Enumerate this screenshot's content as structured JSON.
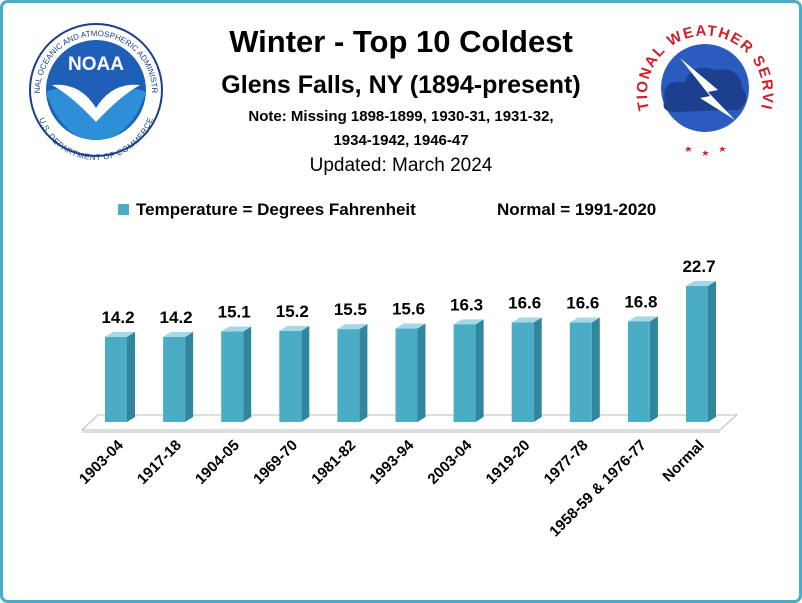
{
  "chart_data": {
    "type": "bar",
    "title": "Winter - Top  10 Coldest",
    "subtitle": "Glens Falls, NY (1894-present)",
    "note": [
      "Note: Missing 1898-1899, 1930-31, 1931-32,",
      "1934-1942, 1946-47"
    ],
    "updated": "Updated:  March 2024",
    "annotation": "Normal = 1991-2020",
    "categories": [
      "1903-04",
      "1917-18",
      "1904-05",
      "1969-70",
      "1981-82",
      "1993-94",
      "2003-04",
      "1919-20",
      "1977-78",
      "1958-59 & 1976-77",
      "Normal"
    ],
    "series": [
      {
        "name": "Temperature = Degrees Fahrenheit",
        "color": "#4bacc6",
        "values": [
          14.2,
          14.2,
          15.1,
          15.2,
          15.5,
          15.6,
          16.3,
          16.6,
          16.6,
          16.8,
          22.7
        ]
      }
    ]
  },
  "logos": {
    "noaa": {
      "abbr": "NOAA",
      "ring_top": "NATIONAL OCEANIC AND ATMOSPHERIC ADMINISTRATION",
      "ring_bottom": "U.S. DEPARTMENT OF COMMERCE"
    },
    "nws": {
      "ring": "NATIONAL WEATHER SERVICE"
    }
  }
}
